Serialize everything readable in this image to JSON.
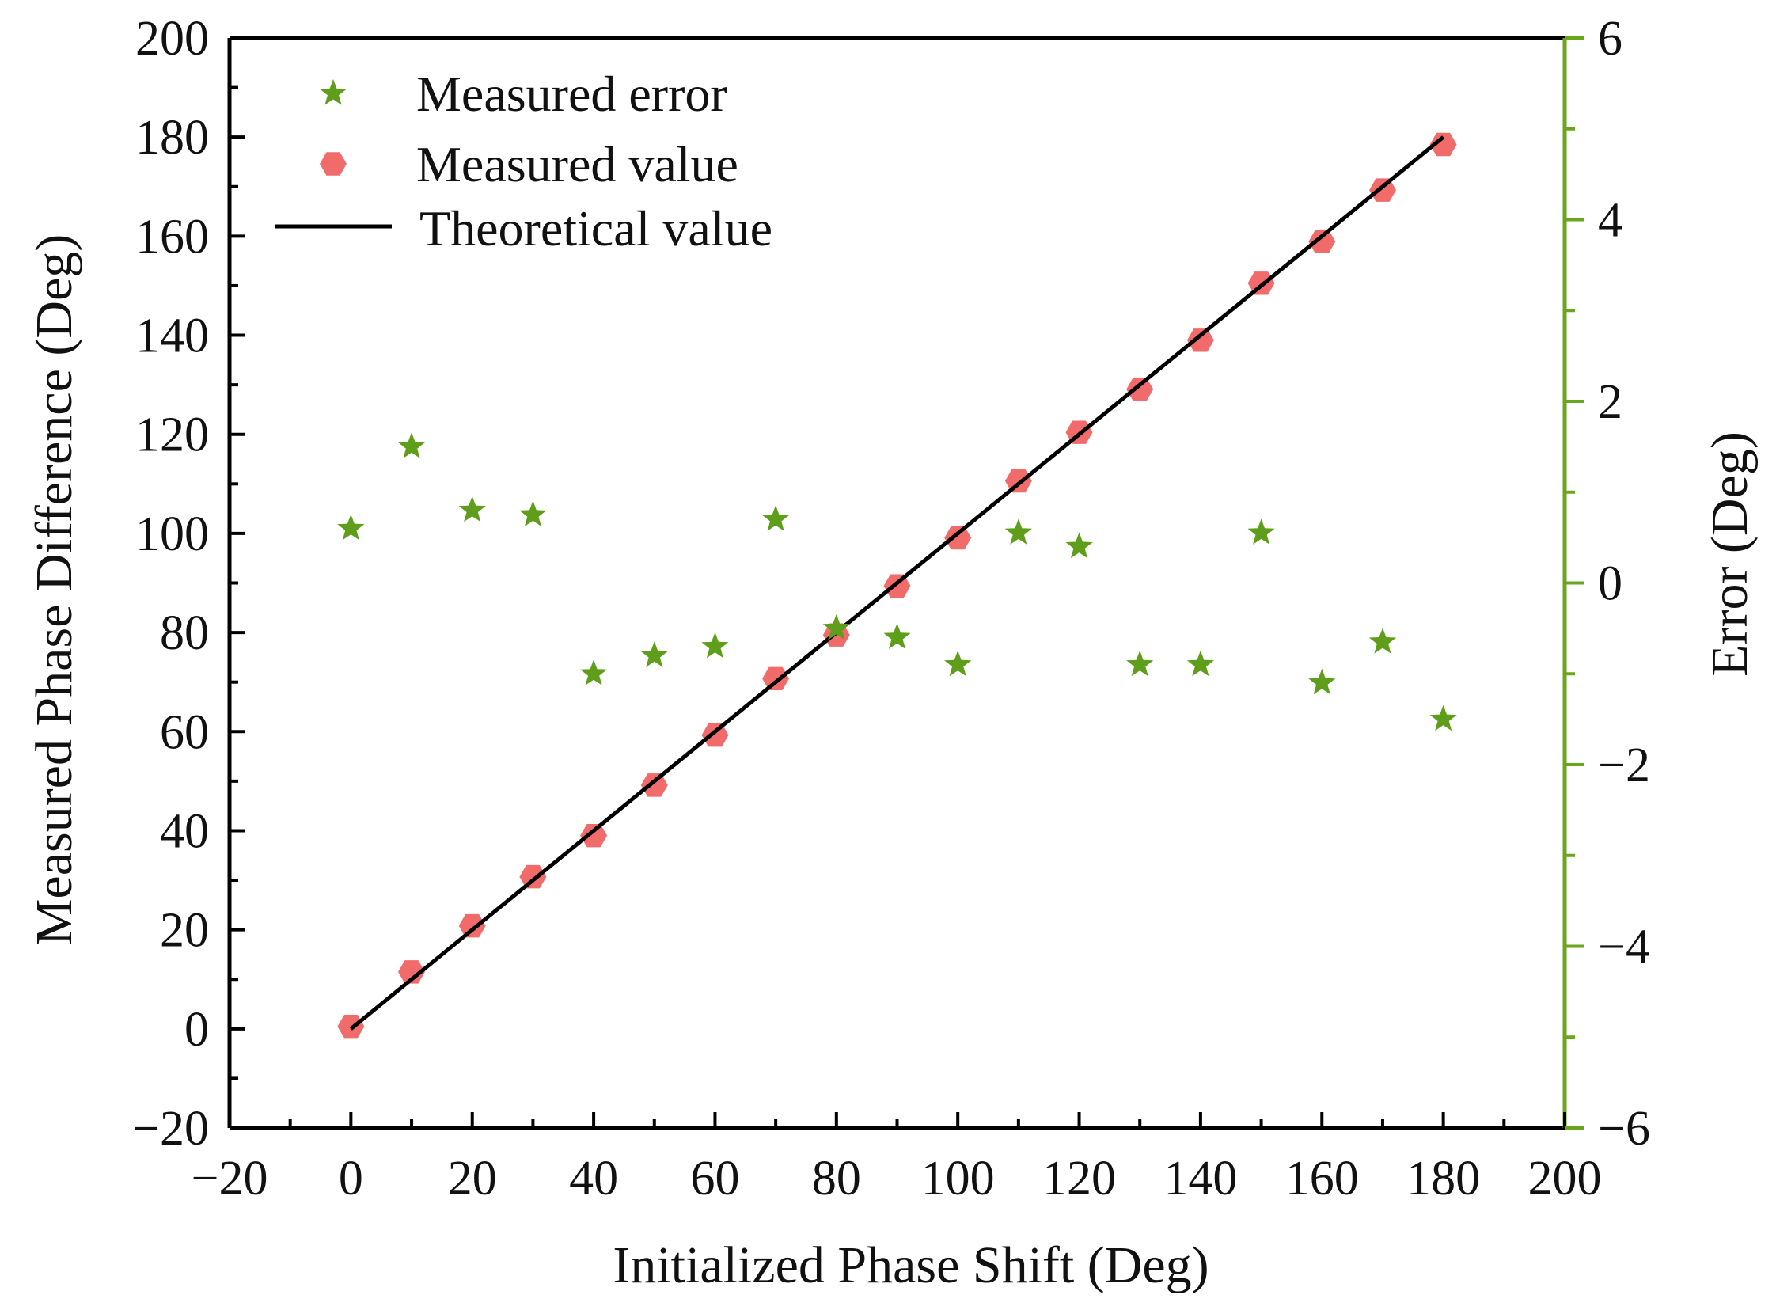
{
  "chart_data": {
    "type": "scatter",
    "title": "",
    "xlabel": "Initialized Phase Shift (Deg)",
    "ylabel": "Measured Phase Difference (Deg)",
    "y2label": "Error (Deg)",
    "xlim": [
      -20,
      200
    ],
    "ylim": [
      -20,
      200
    ],
    "y2lim": [
      -6,
      6
    ],
    "xticks": [
      -20,
      0,
      20,
      40,
      60,
      80,
      100,
      120,
      140,
      160,
      180,
      200
    ],
    "yticks": [
      -20,
      0,
      20,
      40,
      60,
      80,
      100,
      120,
      140,
      160,
      180,
      200
    ],
    "y2ticks": [
      -6,
      -4,
      -2,
      0,
      2,
      4,
      6
    ],
    "xtick_labels": [
      "−20",
      "0",
      "20",
      "40",
      "60",
      "80",
      "100",
      "120",
      "140",
      "160",
      "180",
      "200"
    ],
    "ytick_labels": [
      "−20",
      "0",
      "20",
      "40",
      "60",
      "80",
      "100",
      "120",
      "140",
      "160",
      "180",
      "200"
    ],
    "y2tick_labels": [
      "−6",
      "−4",
      "−2",
      "0",
      "2",
      "4",
      "6"
    ],
    "legend_position": "top-left",
    "colors": {
      "error": "#5e9e1a",
      "measured": "#f26b6b",
      "theoretical": "#000000",
      "right_axis": "#6aa61c"
    },
    "series": [
      {
        "name": "Measured error",
        "axis": "right",
        "marker": "star",
        "x": [
          0,
          10,
          20,
          30,
          40,
          50,
          60,
          70,
          80,
          90,
          100,
          110,
          120,
          130,
          140,
          150,
          160,
          170,
          180
        ],
        "values": [
          0.6,
          1.5,
          0.8,
          0.75,
          -1.0,
          -0.8,
          -0.7,
          0.7,
          -0.5,
          -0.6,
          -0.9,
          0.55,
          0.4,
          -0.9,
          -0.9,
          0.55,
          -1.1,
          -0.65,
          -1.5
        ]
      },
      {
        "name": "Measured value",
        "axis": "left",
        "marker": "hexagon",
        "x": [
          0,
          10,
          20,
          30,
          40,
          50,
          60,
          70,
          80,
          90,
          100,
          110,
          120,
          130,
          140,
          150,
          160,
          170,
          180
        ],
        "values": [
          0.5,
          11.5,
          20.8,
          30.7,
          39,
          49.2,
          59.3,
          70.7,
          79.5,
          89.4,
          99.1,
          110.6,
          120.4,
          129.1,
          139,
          150.5,
          158.9,
          169.3,
          178.5
        ]
      },
      {
        "name": "Theoretical value",
        "axis": "left",
        "marker": "line",
        "x": [
          0,
          180
        ],
        "values": [
          0,
          180
        ]
      }
    ]
  }
}
